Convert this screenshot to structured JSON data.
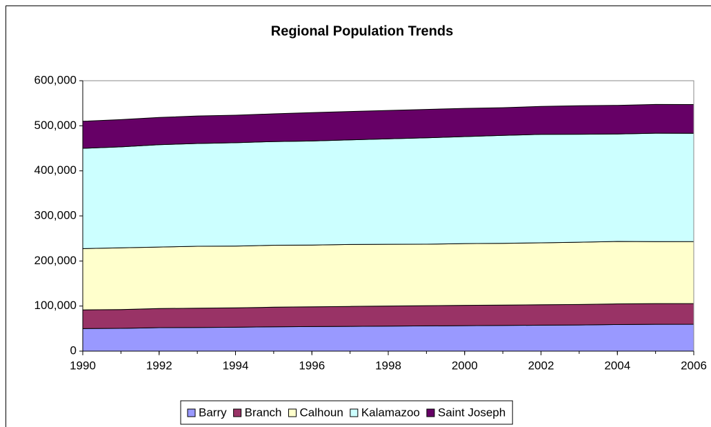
{
  "chart_data": {
    "type": "stacked_area",
    "title": "Regional Population Trends",
    "x": [
      1990,
      1991,
      1992,
      1993,
      1994,
      1995,
      1996,
      1997,
      1998,
      1999,
      2000,
      2001,
      2002,
      2003,
      2004,
      2005,
      2006
    ],
    "series": [
      {
        "name": "Barry",
        "color": "#9999ff",
        "values": [
          50000,
          50500,
          52000,
          52500,
          53000,
          54000,
          54500,
          55000,
          55500,
          56000,
          56500,
          57000,
          57500,
          58000,
          59000,
          59500,
          59700
        ]
      },
      {
        "name": "Branch",
        "color": "#993366",
        "values": [
          41500,
          41700,
          42500,
          42700,
          43000,
          43500,
          43800,
          44200,
          44500,
          44800,
          45000,
          45200,
          45400,
          45600,
          45800,
          45900,
          46000
        ]
      },
      {
        "name": "Calhoun",
        "color": "#ffffcc",
        "values": [
          136000,
          137000,
          136500,
          137500,
          137000,
          137500,
          137000,
          137500,
          137000,
          136500,
          137000,
          137000,
          137500,
          138000,
          138500,
          137500,
          137500
        ]
      },
      {
        "name": "Kalamazoo",
        "color": "#ccffff",
        "values": [
          222500,
          224000,
          227000,
          228000,
          229500,
          230000,
          231000,
          232000,
          234000,
          236000,
          237500,
          239500,
          240500,
          239500,
          238500,
          240500,
          240000
        ]
      },
      {
        "name": "Saint Joseph",
        "color": "#660066",
        "values": [
          60000,
          60500,
          60500,
          61000,
          61000,
          61500,
          63000,
          63000,
          63000,
          63000,
          62500,
          61500,
          62000,
          63500,
          63500,
          64000,
          64000
        ]
      }
    ],
    "xlim": [
      1990,
      2006
    ],
    "xticks": [
      1990,
      1992,
      1994,
      1996,
      1998,
      2000,
      2002,
      2004,
      2006
    ],
    "ylim": [
      0,
      600000
    ],
    "yticks": [
      0,
      {
        "value": 100000,
        "label": "100,000"
      },
      {
        "value": 200000,
        "label": "200,000"
      },
      {
        "value": 300000,
        "label": "300,000"
      },
      {
        "value": 400000,
        "label": "400,000"
      },
      {
        "value": 500000,
        "label": "500,000"
      },
      {
        "value": 600000,
        "label": "600,000"
      }
    ],
    "grid": false,
    "legend": "bottom"
  }
}
